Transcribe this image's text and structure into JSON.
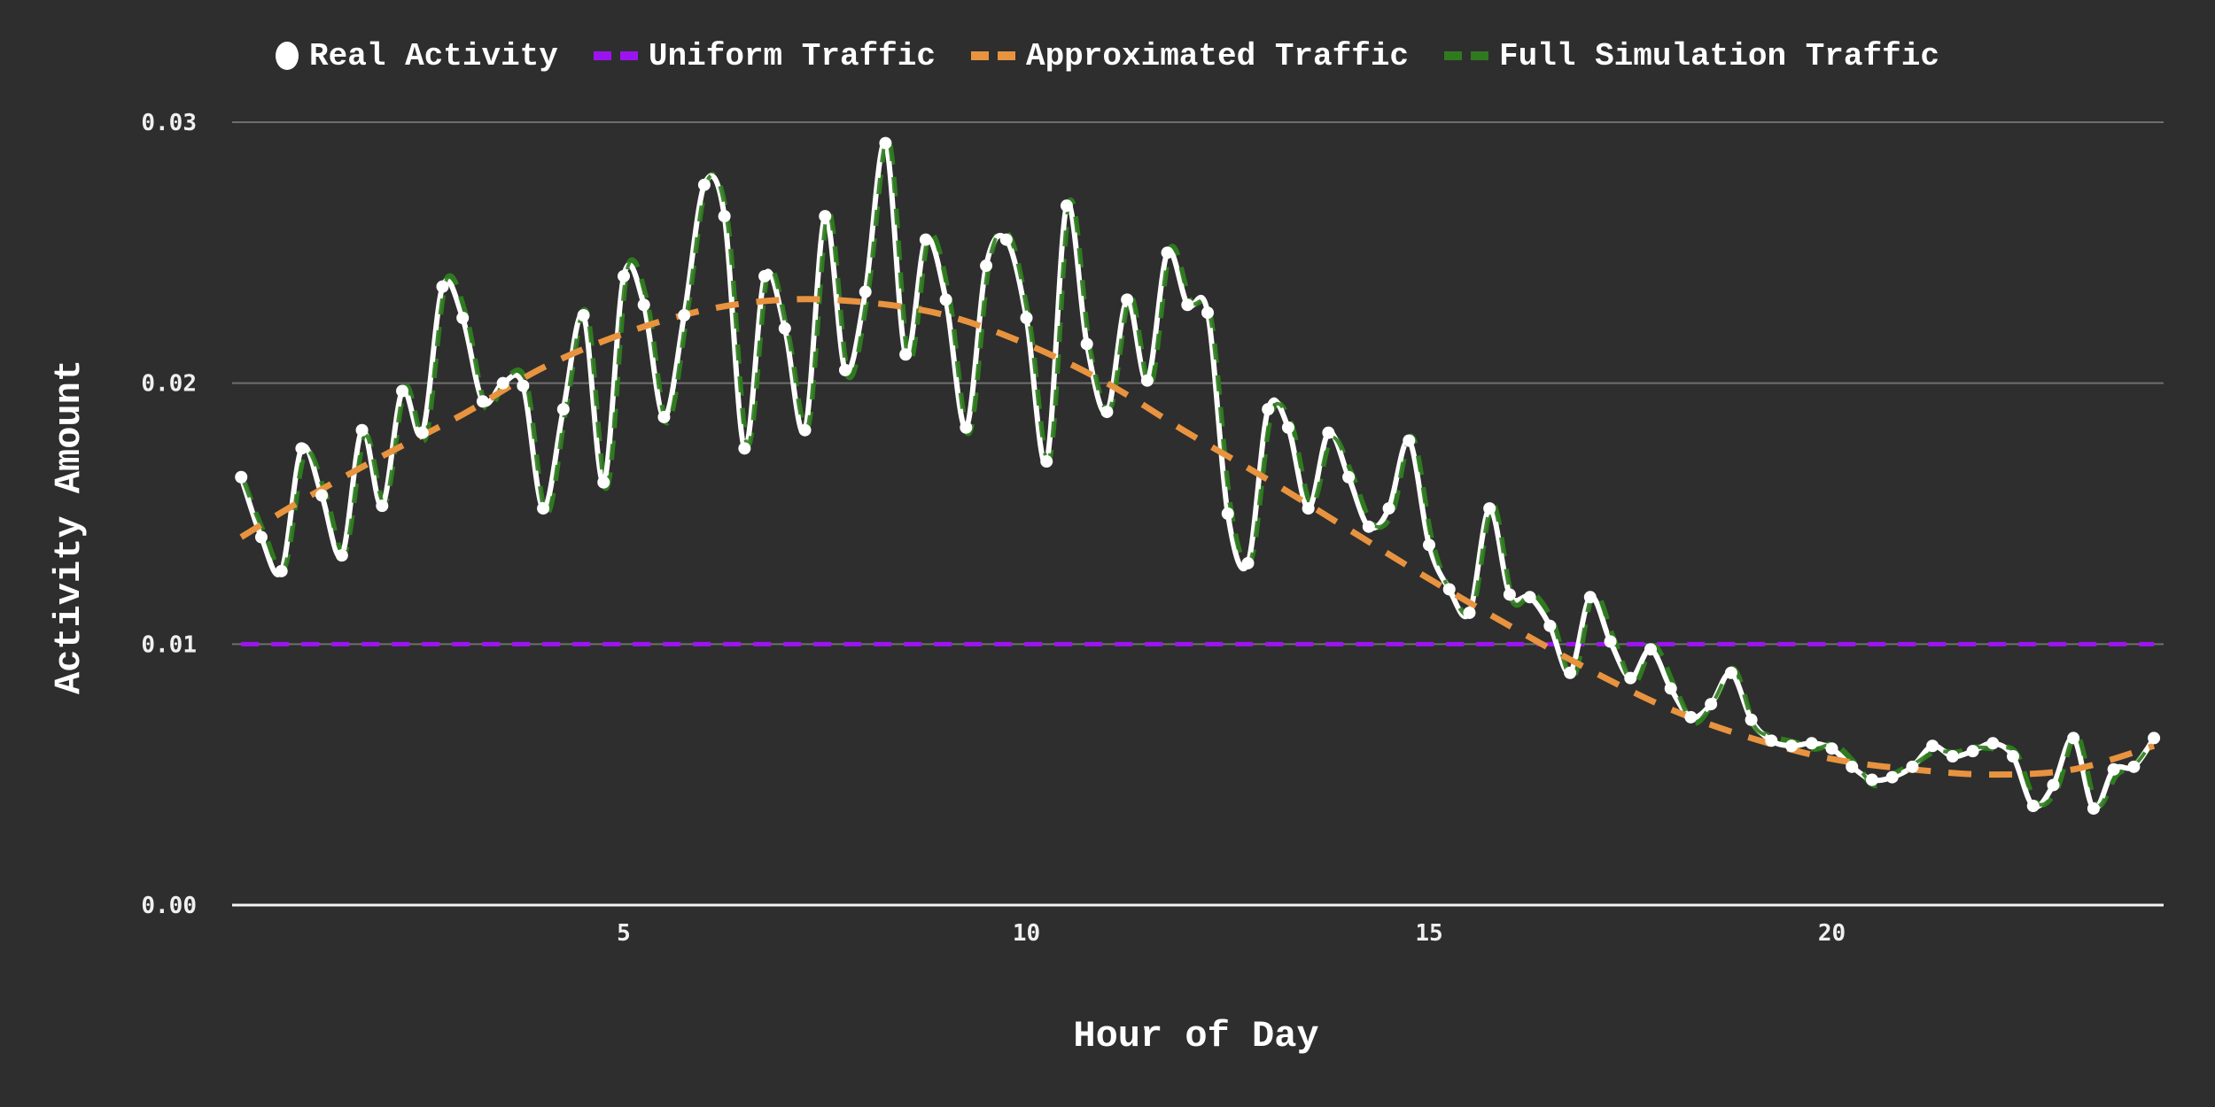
{
  "legend": {
    "items": [
      {
        "label": "Real Activity",
        "marker": "circle",
        "color": "#ffffff"
      },
      {
        "label": "Uniform Traffic",
        "marker": "dash",
        "color": "#9b14f0"
      },
      {
        "label": "Approximated Traffic",
        "marker": "dash",
        "color": "#e8933f"
      },
      {
        "label": "Full Simulation Traffic",
        "marker": "dash",
        "color": "#2f7a1f"
      }
    ]
  },
  "axes": {
    "x_label": "Hour of Day",
    "y_label": "Activity Amount",
    "x_ticks": [
      "5",
      "10",
      "15",
      "20"
    ],
    "y_ticks": [
      "0.00",
      "0.01",
      "0.02",
      "0.03"
    ]
  },
  "chart_data": {
    "type": "line",
    "title": "",
    "xlabel": "Hour of Day",
    "ylabel": "Activity Amount",
    "xlim": [
      0,
      24
    ],
    "ylim": [
      0,
      0.03
    ],
    "x_ticks": [
      5,
      10,
      15,
      20
    ],
    "y_ticks": [
      0.0,
      0.01,
      0.02,
      0.03
    ],
    "grid": {
      "y": true,
      "x": false
    },
    "legend_position": "top",
    "background": "#2e2e2e",
    "x": [
      0.25,
      0.5,
      0.75,
      1.0,
      1.25,
      1.5,
      1.75,
      2.0,
      2.25,
      2.5,
      2.75,
      3.0,
      3.25,
      3.5,
      3.75,
      4.0,
      4.25,
      4.5,
      4.75,
      5.0,
      5.25,
      5.5,
      5.75,
      6.0,
      6.25,
      6.5,
      6.75,
      7.0,
      7.25,
      7.5,
      7.75,
      8.0,
      8.25,
      8.5,
      8.75,
      9.0,
      9.25,
      9.5,
      9.75,
      10.0,
      10.25,
      10.5,
      10.75,
      11.0,
      11.25,
      11.5,
      11.75,
      12.0,
      12.25,
      12.5,
      12.75,
      13.0,
      13.25,
      13.5,
      13.75,
      14.0,
      14.25,
      14.5,
      14.75,
      15.0,
      15.25,
      15.5,
      15.75,
      16.0,
      16.25,
      16.5,
      16.75,
      17.0,
      17.25,
      17.5,
      17.75,
      18.0,
      18.25,
      18.5,
      18.75,
      19.0,
      19.25,
      19.5,
      19.75,
      20.0,
      20.25,
      20.5,
      20.75,
      21.0,
      21.25,
      21.5,
      21.75,
      22.0,
      22.25,
      22.5,
      22.75,
      23.0,
      23.25,
      23.5,
      23.75,
      24.0
    ],
    "series": [
      {
        "name": "Real Activity",
        "style": "solid line with circle markers",
        "color": "#ffffff",
        "values": [
          0.0164,
          0.0141,
          0.0128,
          0.0175,
          0.0157,
          0.0134,
          0.0182,
          0.0153,
          0.0197,
          0.0181,
          0.0237,
          0.0225,
          0.0193,
          0.02,
          0.0199,
          0.0152,
          0.019,
          0.0226,
          0.0162,
          0.0241,
          0.023,
          0.0187,
          0.0226,
          0.0276,
          0.0264,
          0.0175,
          0.0241,
          0.0221,
          0.0182,
          0.0264,
          0.0205,
          0.0235,
          0.0292,
          0.0211,
          0.0255,
          0.0232,
          0.0183,
          0.0245,
          0.0255,
          0.0225,
          0.017,
          0.0268,
          0.0215,
          0.0189,
          0.0232,
          0.0201,
          0.025,
          0.023,
          0.0227,
          0.015,
          0.0131,
          0.019,
          0.0183,
          0.0152,
          0.0181,
          0.0164,
          0.0145,
          0.0152,
          0.0178,
          0.0138,
          0.0121,
          0.0112,
          0.0152,
          0.0119,
          0.0118,
          0.0107,
          0.0089,
          0.0118,
          0.0101,
          0.0087,
          0.0098,
          0.0083,
          0.0072,
          0.0077,
          0.0089,
          0.0071,
          0.0063,
          0.0061,
          0.0062,
          0.006,
          0.0053,
          0.0048,
          0.0049,
          0.0053,
          0.0061,
          0.0057,
          0.0059,
          0.0062,
          0.0057,
          0.0038,
          0.0046,
          0.0064,
          0.0037,
          0.0052,
          0.0053,
          0.0064
        ]
      },
      {
        "name": "Uniform Traffic",
        "style": "dashed",
        "color": "#9b14f0",
        "values_constant": 0.01
      },
      {
        "name": "Approximated Traffic",
        "style": "dashed",
        "color": "#e8933f",
        "x_points": [
          0.25,
          1,
          2,
          3,
          4,
          5,
          6,
          7,
          8,
          9,
          10,
          11,
          12,
          13,
          14,
          15,
          16,
          17,
          18,
          19,
          20,
          21,
          22,
          23,
          24
        ],
        "values": [
          0.0141,
          0.0155,
          0.0172,
          0.0188,
          0.0206,
          0.0219,
          0.0228,
          0.0232,
          0.0231,
          0.0226,
          0.0215,
          0.02,
          0.0181,
          0.0163,
          0.0144,
          0.0125,
          0.0107,
          0.009,
          0.0075,
          0.0064,
          0.0056,
          0.0052,
          0.005,
          0.0052,
          0.0061
        ]
      },
      {
        "name": "Full Simulation Traffic",
        "style": "dashed",
        "color": "#2f7a1f",
        "note": "closely tracks Real Activity with small deviations"
      }
    ]
  }
}
